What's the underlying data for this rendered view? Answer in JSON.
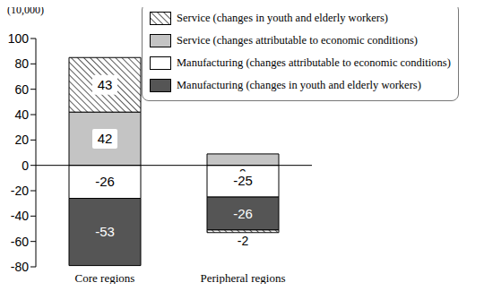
{
  "chart_data": {
    "type": "bar",
    "ylabel": "(10,000)",
    "categories": [
      "Core regions",
      "Peripheral regions"
    ],
    "series": [
      {
        "name": "Service (changes in youth and elderly workers)",
        "color": "#000000",
        "marker": "hatch",
        "values": [
          43,
          -2
        ]
      },
      {
        "name": "Service (changes attributable to economic conditions)",
        "color": "#c4c4c4",
        "values": [
          42,
          9
        ]
      },
      {
        "name": "Manufacturing (changes attributable to economic conditions)",
        "color": "#ffffff",
        "values": [
          -26,
          -25
        ]
      },
      {
        "name": "Manufacturing (changes in youth and elderly workers)",
        "color": "#555555",
        "values": [
          -53,
          -26
        ]
      }
    ],
    "ylim": [
      -80,
      100
    ],
    "yticks": [
      -80,
      -60,
      -40,
      -20,
      0,
      20,
      40,
      60,
      80,
      100
    ],
    "stacked": true,
    "data_labels": true,
    "legend": "upper right"
  }
}
